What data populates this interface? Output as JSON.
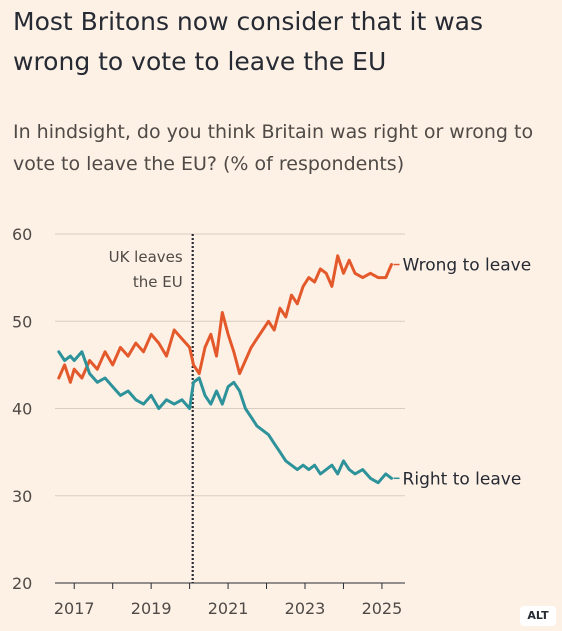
{
  "title": "Most Britons now consider that it was wrong to vote to leave the EU",
  "subtitle": "In hindsight, do you think Britain was right or wrong to vote to leave the EU? (% of respondents)",
  "alt_label": "ALT",
  "colors": {
    "wrong": "#e4592b",
    "right": "#2d929a",
    "grid": "#d9cdc2",
    "background": "#fdf1e6"
  },
  "chart_data": {
    "type": "line",
    "title": "",
    "xlabel": "",
    "ylabel": "",
    "ylim": [
      20,
      60
    ],
    "xlim": [
      2016.5,
      2025.6
    ],
    "yticks": [
      "20",
      "30",
      "40",
      "50",
      "60"
    ],
    "xticks": [
      "2017",
      "2019",
      "2021",
      "2023",
      "2025"
    ],
    "grid": true,
    "annotations": [
      {
        "x": 2020.08,
        "lines": [
          "UK leaves",
          "the EU"
        ]
      }
    ],
    "series": [
      {
        "name": "Wrong to leave",
        "color": "#e4592b",
        "x": [
          2016.6,
          2016.75,
          2016.9,
          2017.0,
          2017.2,
          2017.4,
          2017.6,
          2017.8,
          2018.0,
          2018.2,
          2018.4,
          2018.6,
          2018.8,
          2019.0,
          2019.2,
          2019.4,
          2019.6,
          2019.8,
          2020.0,
          2020.1,
          2020.25,
          2020.4,
          2020.55,
          2020.7,
          2020.85,
          2021.0,
          2021.15,
          2021.3,
          2021.45,
          2021.6,
          2021.75,
          2021.9,
          2022.05,
          2022.2,
          2022.35,
          2022.5,
          2022.65,
          2022.8,
          2022.95,
          2023.1,
          2023.25,
          2023.4,
          2023.55,
          2023.7,
          2023.85,
          2024.0,
          2024.15,
          2024.3,
          2024.5,
          2024.7,
          2024.9,
          2025.1,
          2025.25
        ],
        "values": [
          43.5,
          45.0,
          43.0,
          44.5,
          43.5,
          45.5,
          44.5,
          46.5,
          45.0,
          47.0,
          46.0,
          47.5,
          46.5,
          48.5,
          47.5,
          46.0,
          49.0,
          48.0,
          47.0,
          45.0,
          44.0,
          47.0,
          48.5,
          46.0,
          51.0,
          48.5,
          46.5,
          44.0,
          45.5,
          47.0,
          48.0,
          49.0,
          50.0,
          49.0,
          51.5,
          50.5,
          53.0,
          52.0,
          54.0,
          55.0,
          54.5,
          56.0,
          55.5,
          54.0,
          57.5,
          55.5,
          57.0,
          55.5,
          55.0,
          55.5,
          55.0,
          55.0,
          56.5
        ]
      },
      {
        "name": "Right to leave",
        "color": "#2d929a",
        "x": [
          2016.6,
          2016.75,
          2016.9,
          2017.0,
          2017.2,
          2017.4,
          2017.6,
          2017.8,
          2018.0,
          2018.2,
          2018.4,
          2018.6,
          2018.8,
          2019.0,
          2019.2,
          2019.4,
          2019.6,
          2019.8,
          2020.0,
          2020.1,
          2020.25,
          2020.4,
          2020.55,
          2020.7,
          2020.85,
          2021.0,
          2021.15,
          2021.3,
          2021.45,
          2021.6,
          2021.75,
          2021.9,
          2022.05,
          2022.2,
          2022.35,
          2022.5,
          2022.65,
          2022.8,
          2022.95,
          2023.1,
          2023.25,
          2023.4,
          2023.55,
          2023.7,
          2023.85,
          2024.0,
          2024.15,
          2024.3,
          2024.5,
          2024.7,
          2024.9,
          2025.1,
          2025.25
        ],
        "values": [
          46.5,
          45.5,
          46.0,
          45.5,
          46.5,
          44.0,
          43.0,
          43.5,
          42.5,
          41.5,
          42.0,
          41.0,
          40.5,
          41.5,
          40.0,
          41.0,
          40.5,
          41.0,
          40.0,
          43.0,
          43.5,
          41.5,
          40.5,
          42.0,
          40.5,
          42.5,
          43.0,
          42.0,
          40.0,
          39.0,
          38.0,
          37.5,
          37.0,
          36.0,
          35.0,
          34.0,
          33.5,
          33.0,
          33.5,
          33.0,
          33.5,
          32.5,
          33.0,
          33.5,
          32.5,
          34.0,
          33.0,
          32.5,
          33.0,
          32.0,
          31.5,
          32.5,
          32.0
        ]
      }
    ]
  }
}
